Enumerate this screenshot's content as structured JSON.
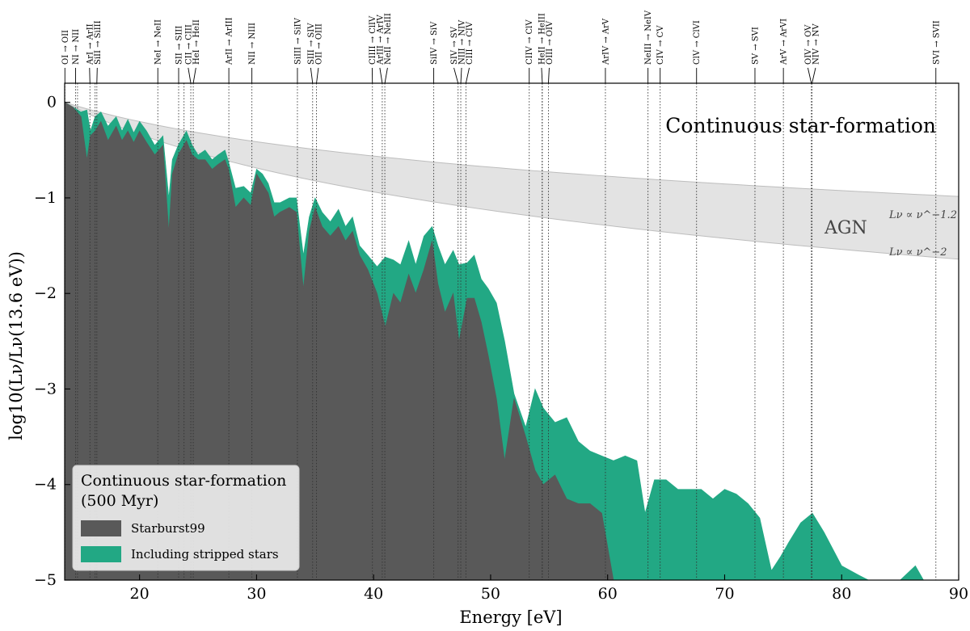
{
  "chart_data": {
    "type": "area",
    "title": "Continuous star-formation",
    "xlabel": "Energy [eV]",
    "ylabel": "log10(Lν/Lν(13.6 eV))",
    "xlim": [
      13.6,
      90
    ],
    "ylim": [
      -5,
      0.2
    ],
    "xticks": [
      20,
      30,
      40,
      50,
      60,
      70,
      80,
      90
    ],
    "yticks": [
      0,
      -1,
      -2,
      -3,
      -4,
      -5
    ],
    "xtick_labels": [
      "20",
      "30",
      "40",
      "50",
      "60",
      "70",
      "80",
      "90"
    ],
    "ytick_labels": [
      "0",
      "−1",
      "−2",
      "−3",
      "−4",
      "−5"
    ],
    "legend": {
      "title_line1": "Continuous star-formation",
      "title_line2": "(500 Myr)",
      "entries": [
        "Starburst99",
        "Including stripped stars"
      ],
      "position": "lower-left"
    },
    "colors": {
      "starburst99": "#595959",
      "stripped": "#22a884",
      "agn_band": "#e3e3e3",
      "agn_edge": "#bdbdbd"
    },
    "agn": {
      "label": "AGN",
      "slope_upper": "Lν ∝ ν^−1.2",
      "slope_lower": "Lν ∝ ν^−2",
      "upper_alpha": -1.2,
      "lower_alpha": -2
    },
    "series": [
      {
        "name": "Including stripped stars",
        "x": [
          13.6,
          14.3,
          15.0,
          15.5,
          15.8,
          16.2,
          16.7,
          17.3,
          18.0,
          18.5,
          19.0,
          19.5,
          20.0,
          20.6,
          21.3,
          22.0,
          22.5,
          22.8,
          23.3,
          24.0,
          24.5,
          25.0,
          25.6,
          26.2,
          26.7,
          27.3,
          27.6,
          28.2,
          28.9,
          29.5,
          30.0,
          30.5,
          31.0,
          31.5,
          32.0,
          32.8,
          33.4,
          34.0,
          34.5,
          35.0,
          35.6,
          36.3,
          37.0,
          37.6,
          38.2,
          38.8,
          39.5,
          40.3,
          41.0,
          41.7,
          42.3,
          43.0,
          43.6,
          44.3,
          45.0,
          45.5,
          46.1,
          46.8,
          47.3,
          48.0,
          48.6,
          49.2,
          49.8,
          50.5,
          51.2,
          52.0,
          53.0,
          53.8,
          54.5,
          55.5,
          56.5,
          57.5,
          58.5,
          59.5,
          60.5,
          61.5,
          62.5,
          63.2,
          64.0,
          65.0,
          66.0,
          67.0,
          68.0,
          69.0,
          70.0,
          71.0,
          72.0,
          73.0,
          74.0,
          74.8,
          75.5,
          76.5,
          77.5,
          78.5,
          80.0,
          81.5,
          82.3,
          83.0,
          85.0,
          86.3,
          87.0,
          88.0,
          89.0,
          90.0
        ],
        "y": [
          0.0,
          -0.05,
          -0.1,
          -0.08,
          -0.3,
          -0.15,
          -0.1,
          -0.25,
          -0.15,
          -0.3,
          -0.18,
          -0.32,
          -0.2,
          -0.3,
          -0.45,
          -0.35,
          -1.0,
          -0.6,
          -0.45,
          -0.3,
          -0.45,
          -0.55,
          -0.5,
          -0.6,
          -0.55,
          -0.5,
          -0.62,
          -0.9,
          -0.88,
          -0.95,
          -0.7,
          -0.75,
          -0.85,
          -1.05,
          -1.05,
          -1.0,
          -1.0,
          -1.6,
          -1.2,
          -1.0,
          -1.15,
          -1.25,
          -1.12,
          -1.3,
          -1.2,
          -1.5,
          -1.6,
          -1.72,
          -1.62,
          -1.65,
          -1.7,
          -1.45,
          -1.7,
          -1.4,
          -1.3,
          -1.5,
          -1.7,
          -1.55,
          -1.7,
          -1.68,
          -1.6,
          -1.85,
          -1.95,
          -2.1,
          -2.5,
          -3.05,
          -3.4,
          -3.0,
          -3.2,
          -3.35,
          -3.3,
          -3.55,
          -3.65,
          -3.7,
          -3.75,
          -3.7,
          -3.75,
          -4.3,
          -3.95,
          -3.95,
          -4.05,
          -4.05,
          -4.05,
          -4.15,
          -4.05,
          -4.1,
          -4.2,
          -4.35,
          -4.9,
          -4.75,
          -4.6,
          -4.4,
          -4.3,
          -4.5,
          -4.85,
          -4.95,
          -5.0,
          -5.0,
          -5.0,
          -4.85,
          -5.0,
          -5.0,
          -5.0,
          -5.0
        ]
      },
      {
        "name": "Starburst99",
        "x": [
          13.6,
          14.3,
          15.0,
          15.5,
          15.8,
          16.2,
          16.7,
          17.3,
          18.0,
          18.5,
          19.0,
          19.5,
          20.0,
          20.6,
          21.3,
          22.0,
          22.5,
          22.8,
          23.3,
          24.0,
          24.5,
          25.0,
          25.6,
          26.2,
          26.7,
          27.3,
          27.6,
          28.2,
          28.9,
          29.5,
          30.0,
          30.5,
          31.0,
          31.5,
          32.0,
          32.8,
          33.4,
          34.0,
          34.5,
          35.0,
          35.6,
          36.3,
          37.0,
          37.6,
          38.2,
          38.8,
          39.5,
          40.3,
          41.0,
          41.7,
          42.3,
          43.0,
          43.6,
          44.3,
          45.0,
          45.5,
          46.1,
          46.8,
          47.3,
          48.0,
          48.6,
          49.2,
          49.8,
          50.5,
          51.2,
          52.0,
          53.0,
          53.8,
          54.5,
          55.5,
          56.5,
          57.5,
          58.5,
          59.5,
          60.5,
          61.5,
          62.5,
          63.2,
          64.0,
          65.0,
          66.0,
          67.0,
          68.0,
          69.0,
          70.0,
          71.0,
          72.0,
          73.0,
          74.0,
          74.8,
          75.5,
          76.5,
          77.5,
          78.5,
          80.0,
          81.5,
          82.3,
          83.0,
          85.0,
          86.3,
          87.0,
          88.0,
          89.0,
          90.0
        ],
        "y": [
          0.0,
          -0.05,
          -0.15,
          -0.6,
          -0.35,
          -0.3,
          -0.2,
          -0.4,
          -0.25,
          -0.4,
          -0.3,
          -0.42,
          -0.3,
          -0.42,
          -0.55,
          -0.45,
          -1.35,
          -0.75,
          -0.55,
          -0.4,
          -0.55,
          -0.6,
          -0.6,
          -0.7,
          -0.65,
          -0.6,
          -0.7,
          -1.1,
          -1.0,
          -1.08,
          -0.75,
          -0.85,
          -0.95,
          -1.2,
          -1.15,
          -1.1,
          -1.15,
          -1.95,
          -1.35,
          -1.1,
          -1.3,
          -1.4,
          -1.3,
          -1.45,
          -1.35,
          -1.6,
          -1.75,
          -2.0,
          -2.35,
          -2.0,
          -2.1,
          -1.8,
          -2.0,
          -1.75,
          -1.45,
          -1.9,
          -2.2,
          -2.0,
          -2.5,
          -2.05,
          -2.05,
          -2.3,
          -2.65,
          -3.1,
          -3.75,
          -3.1,
          -3.5,
          -3.85,
          -4.0,
          -3.9,
          -4.15,
          -4.2,
          -4.2,
          -4.3,
          -5.0,
          -5.0,
          -5.0,
          -5.0,
          -5.0,
          -5.0,
          -5.0,
          -5.0,
          -5.0,
          -5.0,
          -5.0,
          -5.0,
          -5.0,
          -5.0,
          -5.0,
          -5.0,
          -5.0,
          -5.0,
          -5.0,
          -5.0,
          -5.0,
          -5.0,
          -5.0,
          -5.0,
          -5.0,
          -5.0,
          -5.0,
          -5.0,
          -5.0,
          -5.0
        ]
      }
    ],
    "ionization_lines": [
      {
        "energy": 13.62,
        "label": "OI → OII"
      },
      {
        "energy": 14.53,
        "label": "NI → NII"
      },
      {
        "energy": 15.76,
        "label": "ArI → ArII"
      },
      {
        "energy": 16.35,
        "label": "SiII → SiIII"
      },
      {
        "energy": 21.56,
        "label": "NeI → NeII"
      },
      {
        "energy": 23.34,
        "label": "SII → SIII"
      },
      {
        "energy": 24.38,
        "label": "CII → CIII"
      },
      {
        "energy": 24.59,
        "label": "HeI → HeII"
      },
      {
        "energy": 27.63,
        "label": "ArII → ArIII"
      },
      {
        "energy": 29.6,
        "label": "NII → NIII"
      },
      {
        "energy": 33.49,
        "label": "SiIII → SiIV"
      },
      {
        "energy": 34.79,
        "label": "SIII → SIV"
      },
      {
        "energy": 35.12,
        "label": "OII → OIII"
      },
      {
        "energy": 40.74,
        "label": "ArIII → ArIV"
      },
      {
        "energy": 40.96,
        "label": "NeII → NeIII"
      },
      {
        "energy": 45.14,
        "label": "SiIV → SiV"
      },
      {
        "energy": 47.22,
        "label": "SIV → SV"
      },
      {
        "energy": 47.45,
        "label": "NIII → NIV"
      },
      {
        "energy": 47.89,
        "label": "CIII → CIV"
      },
      {
        "energy": 54.42,
        "label": "HeII → HeIII"
      },
      {
        "energy": 54.94,
        "label": "OIII → OIV"
      },
      {
        "energy": 59.81,
        "label": "ArIV → ArV"
      },
      {
        "energy": 63.45,
        "label": "NeIII → NeIV"
      },
      {
        "energy": 64.49,
        "label": "CIV → CV"
      },
      {
        "energy": 67.6,
        "label": "ClV → ClVI"
      },
      {
        "energy": 72.59,
        "label": "SV → SVI"
      },
      {
        "energy": 75.02,
        "label": "ArV → ArVI"
      },
      {
        "energy": 77.41,
        "label": "OIV → OV"
      },
      {
        "energy": 77.47,
        "label": "NIV → NV"
      },
      {
        "energy": 88.05,
        "label": "SVI → SVII"
      }
    ],
    "extra_top_labels": [
      "CIIV → ClV",
      "CIIII → ClIV"
    ],
    "extra_line_energies": [
      14.7,
      16.2,
      23.8,
      39.9,
      53.3,
      54.4
    ]
  }
}
